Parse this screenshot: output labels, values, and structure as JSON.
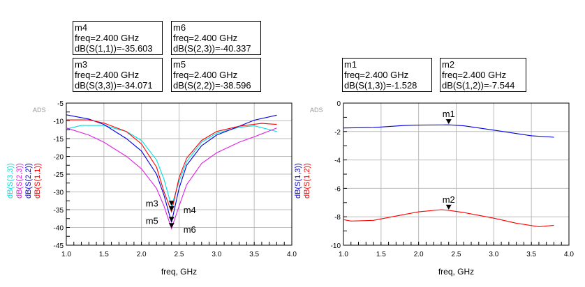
{
  "markers_left": [
    {
      "name": "m4",
      "freq": "freq=2.400 GHz",
      "value": "dB(S(1,1))=-35.603"
    },
    {
      "name": "m6",
      "freq": "freq=2.400 GHz",
      "value": "dB(S(2,3))=-40.337"
    },
    {
      "name": "m3",
      "freq": "freq=2.400 GHz",
      "value": "dB(S(3,3))=-34.071"
    },
    {
      "name": "m5",
      "freq": "freq=2.400 GHz",
      "value": "dB(S(2,2))=-38.596"
    }
  ],
  "markers_right": [
    {
      "name": "m1",
      "freq": "freq=2.400 GHz",
      "value": "dB(S(1,3))=-1.528"
    },
    {
      "name": "m2",
      "freq": "freq=2.400 GHz",
      "value": "dB(S(1,2))=-7.544"
    }
  ],
  "chart_data": [
    {
      "type": "line",
      "watermark": "ADS",
      "xlabel": "freq, GHz",
      "xlim": [
        1.0,
        4.0
      ],
      "ylim": [
        -45,
        -5
      ],
      "xticks": [
        "1.0",
        "1.5",
        "2.0",
        "2.5",
        "3.0",
        "3.5",
        "4.0"
      ],
      "yticks": [
        "-5",
        "-10",
        "-15",
        "-20",
        "-25",
        "-30",
        "-35",
        "-40",
        "-45"
      ],
      "grid": true,
      "series": [
        {
          "name": "dB(S(3,3))",
          "color": "#00e0e0",
          "marker": "m3",
          "x": [
            1,
            1.2,
            1.5,
            1.8,
            2.0,
            2.2,
            2.3,
            2.4,
            2.5,
            2.6,
            2.8,
            3.0,
            3.3,
            3.5,
            3.8
          ],
          "y": [
            -12.3,
            -11.3,
            -11.3,
            -13,
            -15.5,
            -21,
            -26.5,
            -34.071,
            -27,
            -21.5,
            -16,
            -13.5,
            -11.8,
            -11.4,
            -13
          ]
        },
        {
          "name": "dB(S(2,3))",
          "color": "#e020e0",
          "marker": "m6",
          "x": [
            1,
            1.3,
            1.5,
            1.8,
            2.0,
            2.2,
            2.3,
            2.4,
            2.5,
            2.6,
            2.8,
            3.0,
            3.3,
            3.5,
            3.8
          ],
          "y": [
            -12,
            -14,
            -16,
            -20,
            -23.5,
            -29,
            -34,
            -40.337,
            -34,
            -28,
            -22,
            -19,
            -16,
            -14.5,
            -12
          ]
        },
        {
          "name": "dB(S(2,2))",
          "color": "#0000e0",
          "marker": "m5",
          "x": [
            1,
            1.3,
            1.5,
            1.8,
            2.0,
            2.2,
            2.3,
            2.4,
            2.5,
            2.6,
            2.8,
            3.0,
            3.3,
            3.5,
            3.8
          ],
          "y": [
            -8.3,
            -9.5,
            -11,
            -15,
            -18.5,
            -25,
            -31,
            -38.596,
            -29,
            -22.5,
            -17,
            -14,
            -11.5,
            -9.8,
            -8.4
          ]
        },
        {
          "name": "dB(S(1,1))",
          "color": "#ff0000",
          "marker": "m4",
          "x": [
            1,
            1.3,
            1.5,
            1.8,
            2.0,
            2.2,
            2.3,
            2.4,
            2.5,
            2.6,
            2.8,
            3.0,
            3.3,
            3.6,
            3.8
          ],
          "y": [
            -9.7,
            -9.7,
            -10.6,
            -13,
            -16.5,
            -23,
            -30,
            -35.603,
            -26,
            -20.5,
            -15.5,
            -13,
            -11.5,
            -10.7,
            -11
          ]
        }
      ]
    },
    {
      "type": "line",
      "watermark": "ADS",
      "xlabel": "freq, GHz",
      "xlim": [
        1.0,
        4.0
      ],
      "ylim": [
        -10,
        0
      ],
      "xticks": [
        "1.0",
        "1.5",
        "2.0",
        "2.5",
        "3.0",
        "3.5",
        "4.0"
      ],
      "yticks": [
        "0",
        "-2",
        "-4",
        "-6",
        "-8",
        "-10"
      ],
      "grid": true,
      "series": [
        {
          "name": "dB(S(1,3))",
          "color": "#0000e0",
          "marker": "m1",
          "x": [
            1,
            1.4,
            1.8,
            2.0,
            2.4,
            2.6,
            3.0,
            3.5,
            3.8
          ],
          "y": [
            -1.75,
            -1.72,
            -1.58,
            -1.55,
            -1.528,
            -1.6,
            -1.9,
            -2.3,
            -2.4
          ]
        },
        {
          "name": "dB(S(1,2))",
          "color": "#ff0000",
          "marker": "m2",
          "x": [
            1,
            1.1,
            1.4,
            1.8,
            2.0,
            2.3,
            2.4,
            2.6,
            3.0,
            3.3,
            3.6,
            3.8
          ],
          "y": [
            -8.2,
            -8.3,
            -8.25,
            -7.85,
            -7.65,
            -7.5,
            -7.544,
            -7.7,
            -8.1,
            -8.45,
            -8.7,
            -8.6
          ]
        }
      ]
    }
  ]
}
